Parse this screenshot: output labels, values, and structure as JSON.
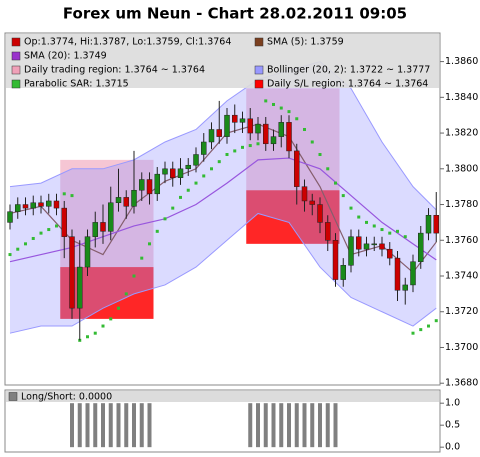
{
  "chart_data": [
    {
      "type": "candlestick",
      "title": "Forex um Neun - Chart 28.02.2011 09:05",
      "ylim": [
        1.3679,
        1.3876
      ],
      "yticks": [
        {
          "value": 1.368,
          "label": "1.3680"
        },
        {
          "value": 1.37,
          "label": "1.3700"
        },
        {
          "value": 1.372,
          "label": "1.3720"
        },
        {
          "value": 1.374,
          "label": "1.3740"
        },
        {
          "value": 1.376,
          "label": "1.3760"
        },
        {
          "value": 1.378,
          "label": "1.3780"
        },
        {
          "value": 1.38,
          "label": "1.3800"
        },
        {
          "value": 1.382,
          "label": "1.3820"
        },
        {
          "value": 1.384,
          "label": "1.3840"
        },
        {
          "value": 1.386,
          "label": "1.3860"
        }
      ],
      "name": "Op:1.3774, Hi:1.3787, Lo:1.3759, Cl:1.3764",
      "color": "#cc0000",
      "up_color": "#1a8a1a",
      "open": [
        1.377,
        1.3776,
        1.378,
        1.3778,
        1.3781,
        1.3779,
        1.3782,
        1.3778,
        1.3762,
        1.3722,
        1.3745,
        1.3762,
        1.377,
        1.3765,
        1.3781,
        1.3784,
        1.3779,
        1.3788,
        1.3794,
        1.3786,
        1.3797,
        1.38,
        1.3795,
        1.38,
        1.3802,
        1.3808,
        1.3815,
        1.3822,
        1.3818,
        1.383,
        1.3826,
        1.3828,
        1.382,
        1.3825,
        1.3814,
        1.3818,
        1.3826,
        1.381,
        1.379,
        1.3782,
        1.378,
        1.377,
        1.376,
        1.3738,
        1.3746,
        1.3762,
        1.3755,
        1.3758,
        1.3758,
        1.3755,
        1.375,
        1.3732,
        1.3735,
        1.3748,
        1.3764,
        1.3774
      ],
      "high": [
        1.378,
        1.3784,
        1.3784,
        1.3785,
        1.3785,
        1.3786,
        1.3786,
        1.3782,
        1.3766,
        1.376,
        1.3766,
        1.3776,
        1.378,
        1.379,
        1.38,
        1.3788,
        1.381,
        1.3798,
        1.3798,
        1.3801,
        1.3804,
        1.3804,
        1.3806,
        1.3806,
        1.3812,
        1.382,
        1.3826,
        1.3838,
        1.3834,
        1.3836,
        1.3832,
        1.3834,
        1.3829,
        1.3829,
        1.3822,
        1.383,
        1.383,
        1.3814,
        1.3794,
        1.3786,
        1.3784,
        1.3774,
        1.3764,
        1.375,
        1.3766,
        1.3766,
        1.3762,
        1.3762,
        1.3762,
        1.3759,
        1.3754,
        1.3739,
        1.3752,
        1.3768,
        1.3778,
        1.3787
      ],
      "low": [
        1.3766,
        1.3772,
        1.3774,
        1.3774,
        1.3775,
        1.3775,
        1.3774,
        1.375,
        1.3716,
        1.3704,
        1.374,
        1.3756,
        1.3758,
        1.376,
        1.3776,
        1.3772,
        1.3775,
        1.3782,
        1.378,
        1.3782,
        1.3792,
        1.379,
        1.3791,
        1.3796,
        1.3798,
        1.3804,
        1.3811,
        1.3814,
        1.3814,
        1.382,
        1.382,
        1.3816,
        1.3816,
        1.381,
        1.381,
        1.3812,
        1.3806,
        1.378,
        1.3776,
        1.3774,
        1.3764,
        1.3754,
        1.3734,
        1.3734,
        1.3742,
        1.3751,
        1.3751,
        1.3754,
        1.3751,
        1.3746,
        1.3726,
        1.3724,
        1.3731,
        1.3744,
        1.376,
        1.3759
      ],
      "close": [
        1.3776,
        1.378,
        1.3778,
        1.3781,
        1.3779,
        1.3782,
        1.3778,
        1.3762,
        1.3722,
        1.3745,
        1.3762,
        1.377,
        1.3765,
        1.3781,
        1.3784,
        1.3779,
        1.3788,
        1.3794,
        1.3786,
        1.3797,
        1.38,
        1.3795,
        1.38,
        1.3802,
        1.3808,
        1.3815,
        1.3822,
        1.3818,
        1.383,
        1.3826,
        1.3828,
        1.382,
        1.3825,
        1.3814,
        1.3818,
        1.3826,
        1.381,
        1.379,
        1.3782,
        1.378,
        1.377,
        1.376,
        1.3738,
        1.3746,
        1.3762,
        1.3755,
        1.3758,
        1.3758,
        1.3755,
        1.375,
        1.3732,
        1.3735,
        1.3748,
        1.3764,
        1.3774,
        1.3764
      ],
      "series": [
        {
          "name": "SMA (5): 1.3759",
          "color": "#7b3f1f",
          "x": [
            0,
            4,
            8,
            12,
            16,
            20,
            24,
            28,
            32,
            36,
            40,
            44,
            48,
            52,
            55
          ],
          "values": [
            1.3775,
            1.3779,
            1.376,
            1.3752,
            1.378,
            1.3793,
            1.38,
            1.382,
            1.3825,
            1.3818,
            1.379,
            1.3752,
            1.3757,
            1.3742,
            1.3759
          ]
        },
        {
          "name": "SMA (20): 1.3749",
          "color": "#9933cc",
          "x": [
            0,
            4,
            8,
            12,
            16,
            20,
            24,
            28,
            32,
            36,
            40,
            44,
            48,
            52,
            55
          ],
          "values": [
            1.3748,
            1.3752,
            1.3756,
            1.3762,
            1.3768,
            1.3772,
            1.378,
            1.3792,
            1.3805,
            1.3806,
            1.38,
            1.3785,
            1.377,
            1.3758,
            1.3749
          ]
        },
        {
          "name": "Bollinger (20, 2): 1.3722 ~ 1.3777",
          "color": "#9999ff",
          "band": true,
          "x": [
            0,
            4,
            8,
            12,
            16,
            20,
            24,
            28,
            32,
            36,
            40,
            44,
            48,
            52,
            55
          ],
          "values": [
            1.379,
            1.3792,
            1.38,
            1.38,
            1.3805,
            1.3815,
            1.3822,
            1.3838,
            1.385,
            1.3855,
            1.386,
            1.3845,
            1.3815,
            1.379,
            1.3777
          ],
          "lower": [
            1.3708,
            1.3712,
            1.3712,
            1.3722,
            1.373,
            1.3735,
            1.3745,
            1.376,
            1.3775,
            1.377,
            1.3745,
            1.3728,
            1.372,
            1.3712,
            1.3722
          ]
        }
      ],
      "regions": [
        {
          "name": "Daily trading region: 1.3764 ~ 1.3764",
          "color": "#f0a0b8",
          "boxes": [
            {
              "from": 7,
              "to": 18,
              "low": 1.3745,
              "high": 1.3805
            },
            {
              "from": 31,
              "to": 42,
              "low": 1.3788,
              "high": 1.3845
            }
          ]
        },
        {
          "name": "Daily S/L region: 1.3764 ~ 1.3764",
          "color": "#ff0000",
          "boxes": [
            {
              "from": 7,
              "to": 18,
              "low": 1.3716,
              "high": 1.3745
            },
            {
              "from": 31,
              "to": 42,
              "low": 1.3758,
              "high": 1.3788
            }
          ]
        }
      ],
      "sar": {
        "name": "Parabolic SAR: 1.3715",
        "color": "#33bb33",
        "values": [
          1.3752,
          1.3755,
          1.3758,
          1.3761,
          1.3764,
          1.3766,
          1.3768,
          1.3786,
          1.3785,
          1.3704,
          1.3706,
          1.3708,
          1.3712,
          1.3716,
          1.3722,
          1.373,
          1.374,
          1.375,
          1.3758,
          1.3765,
          1.3772,
          1.3778,
          1.3784,
          1.3788,
          1.3792,
          1.3796,
          1.38,
          1.3804,
          1.3808,
          1.381,
          1.3812,
          1.3813,
          1.3814,
          1.3838,
          1.3836,
          1.3834,
          1.3832,
          1.3828,
          1.3822,
          1.3815,
          1.3808,
          1.38,
          1.3792,
          1.3785,
          1.3778,
          1.3773,
          1.377,
          1.3768,
          1.3766,
          1.3764,
          1.3765,
          1.3762,
          1.3708,
          1.371,
          1.3712,
          1.3715
        ]
      }
    },
    {
      "type": "bar",
      "name": "Long/Short: 0.0000",
      "color": "#808080",
      "ylim": [
        -0.11,
        1.3
      ],
      "yticks": [
        {
          "value": 0,
          "label": "0.0"
        },
        {
          "value": 0.5,
          "label": "0.5"
        },
        {
          "value": 1,
          "label": "1.0"
        }
      ],
      "values": [
        0,
        0,
        0,
        0,
        0,
        0,
        0,
        0,
        1,
        1,
        1,
        1,
        1,
        1,
        1,
        1,
        1,
        1,
        1,
        0,
        0,
        0,
        0,
        0,
        0,
        0,
        0,
        0,
        0,
        0,
        0,
        1,
        1,
        1,
        1,
        1,
        1,
        1,
        1,
        1,
        1,
        1,
        1,
        0,
        0,
        0,
        0,
        0,
        0,
        0,
        0,
        0,
        0,
        0,
        0,
        0
      ]
    }
  ]
}
